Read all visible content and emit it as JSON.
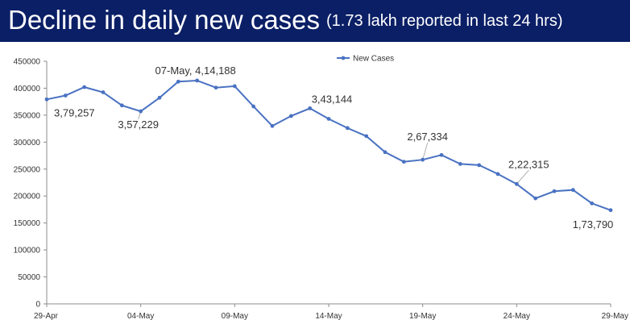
{
  "header": {
    "title": "Decline in daily new cases",
    "subtitle": "(1.73 lakh reported in last 24 hrs)"
  },
  "chart_data": {
    "type": "line",
    "title": "Decline in daily new cases",
    "subtitle": "(1.73 lakh reported in last 24 hrs)",
    "xlabel": "",
    "ylabel": "",
    "ylim": [
      0,
      450000
    ],
    "y_ticks": [
      "0",
      "50000",
      "100000",
      "150000",
      "200000",
      "250000",
      "300000",
      "350000",
      "400000",
      "450000"
    ],
    "x_ticks": [
      "29-Apr",
      "04-May",
      "09-May",
      "14-May",
      "19-May",
      "24-May",
      "29-May"
    ],
    "x_tick_index": [
      0,
      5,
      10,
      15,
      20,
      25,
      30
    ],
    "grid": false,
    "legend": {
      "position": "top-center",
      "entries": [
        "New Cases"
      ]
    },
    "color": "#4a72c2",
    "series": [
      {
        "name": "New Cases",
        "values": [
          379257,
          386452,
          401993,
          392488,
          368147,
          357229,
          382315,
          412262,
          414188,
          401078,
          403738,
          366161,
          329942,
          348421,
          362727,
          343144,
          326098,
          311170,
          281386,
          263533,
          267334,
          276070,
          259551,
          257299,
          240842,
          222315,
          195685,
          208921,
          211298,
          186364,
          173790
        ]
      }
    ],
    "annotations": [
      {
        "index": 0,
        "text": "3,79,257"
      },
      {
        "index": 5,
        "text": "3,57,229"
      },
      {
        "index": 8,
        "text": "07-May, 4,14,188"
      },
      {
        "index": 15,
        "text": "3,43,144"
      },
      {
        "index": 20,
        "text": "2,67,334"
      },
      {
        "index": 25,
        "text": "2,22,315"
      },
      {
        "index": 30,
        "text": "1,73,790"
      }
    ]
  }
}
